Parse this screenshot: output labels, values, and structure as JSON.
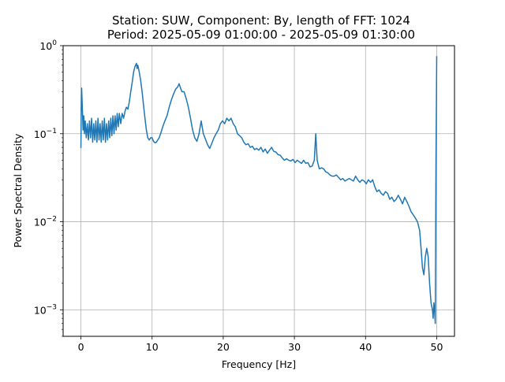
{
  "chart_data": {
    "type": "line",
    "title": "Station: SUW, Component: By, length of FFT: 1024",
    "subtitle": "Period: 2025-05-09 01:00:00 - 2025-05-09 01:30:00",
    "xlabel": "Frequency [Hz]",
    "ylabel": "Power Spectral Density",
    "xlim": [
      -2.5,
      52.5
    ],
    "ylim": [
      0.0005,
      1.0
    ],
    "yscale": "log",
    "grid": true,
    "x_ticks": [
      0,
      10,
      20,
      30,
      40,
      50
    ],
    "x_tick_labels": [
      "0",
      "10",
      "20",
      "30",
      "40",
      "50"
    ],
    "y_ticks": [
      0.001,
      0.01,
      0.1,
      1
    ],
    "y_tick_labels": [
      "10",
      "10",
      "10",
      "10"
    ],
    "y_tick_exponents": [
      "−3",
      "−2",
      "−1",
      "0"
    ],
    "series": [
      {
        "color": "#1f77b4",
        "points": [
          [
            0.0,
            0.07
          ],
          [
            0.05,
            0.2
          ],
          [
            0.1,
            0.33
          ],
          [
            0.2,
            0.2
          ],
          [
            0.3,
            0.11
          ],
          [
            0.4,
            0.16
          ],
          [
            0.5,
            0.1
          ],
          [
            0.6,
            0.14
          ],
          [
            0.75,
            0.09
          ],
          [
            0.9,
            0.13
          ],
          [
            1.05,
            0.085
          ],
          [
            1.2,
            0.14
          ],
          [
            1.35,
            0.09
          ],
          [
            1.5,
            0.15
          ],
          [
            1.65,
            0.08
          ],
          [
            1.8,
            0.13
          ],
          [
            1.95,
            0.085
          ],
          [
            2.1,
            0.14
          ],
          [
            2.25,
            0.08
          ],
          [
            2.4,
            0.15
          ],
          [
            2.55,
            0.085
          ],
          [
            2.7,
            0.13
          ],
          [
            2.85,
            0.08
          ],
          [
            3.0,
            0.14
          ],
          [
            3.15,
            0.085
          ],
          [
            3.3,
            0.15
          ],
          [
            3.45,
            0.08
          ],
          [
            3.6,
            0.13
          ],
          [
            3.75,
            0.085
          ],
          [
            3.9,
            0.14
          ],
          [
            4.05,
            0.09
          ],
          [
            4.2,
            0.15
          ],
          [
            4.35,
            0.095
          ],
          [
            4.5,
            0.16
          ],
          [
            4.65,
            0.1
          ],
          [
            4.8,
            0.16
          ],
          [
            4.95,
            0.11
          ],
          [
            5.1,
            0.17
          ],
          [
            5.25,
            0.12
          ],
          [
            5.4,
            0.17
          ],
          [
            5.6,
            0.13
          ],
          [
            5.8,
            0.17
          ],
          [
            6.0,
            0.15
          ],
          [
            6.2,
            0.18
          ],
          [
            6.4,
            0.2
          ],
          [
            6.6,
            0.19
          ],
          [
            6.8,
            0.23
          ],
          [
            7.0,
            0.3
          ],
          [
            7.2,
            0.38
          ],
          [
            7.4,
            0.5
          ],
          [
            7.6,
            0.58
          ],
          [
            7.8,
            0.63
          ],
          [
            7.9,
            0.55
          ],
          [
            8.0,
            0.6
          ],
          [
            8.2,
            0.5
          ],
          [
            8.4,
            0.4
          ],
          [
            8.6,
            0.3
          ],
          [
            8.8,
            0.21
          ],
          [
            9.0,
            0.15
          ],
          [
            9.2,
            0.11
          ],
          [
            9.4,
            0.09
          ],
          [
            9.6,
            0.085
          ],
          [
            9.8,
            0.09
          ],
          [
            10.0,
            0.09
          ],
          [
            10.2,
            0.082
          ],
          [
            10.4,
            0.079
          ],
          [
            10.6,
            0.08
          ],
          [
            10.8,
            0.085
          ],
          [
            11.0,
            0.09
          ],
          [
            11.2,
            0.1
          ],
          [
            11.5,
            0.12
          ],
          [
            11.8,
            0.14
          ],
          [
            12.1,
            0.16
          ],
          [
            12.4,
            0.2
          ],
          [
            12.7,
            0.24
          ],
          [
            13.0,
            0.28
          ],
          [
            13.3,
            0.32
          ],
          [
            13.6,
            0.34
          ],
          [
            13.8,
            0.37
          ],
          [
            14.0,
            0.33
          ],
          [
            14.2,
            0.3
          ],
          [
            14.5,
            0.3
          ],
          [
            14.8,
            0.25
          ],
          [
            15.1,
            0.2
          ],
          [
            15.4,
            0.15
          ],
          [
            15.7,
            0.11
          ],
          [
            16.0,
            0.09
          ],
          [
            16.3,
            0.082
          ],
          [
            16.6,
            0.1
          ],
          [
            16.9,
            0.14
          ],
          [
            17.2,
            0.1
          ],
          [
            17.5,
            0.087
          ],
          [
            17.8,
            0.075
          ],
          [
            18.1,
            0.068
          ],
          [
            18.4,
            0.078
          ],
          [
            18.7,
            0.09
          ],
          [
            19.0,
            0.1
          ],
          [
            19.3,
            0.11
          ],
          [
            19.6,
            0.13
          ],
          [
            19.9,
            0.14
          ],
          [
            20.2,
            0.13
          ],
          [
            20.5,
            0.15
          ],
          [
            20.8,
            0.14
          ],
          [
            21.1,
            0.15
          ],
          [
            21.4,
            0.13
          ],
          [
            21.7,
            0.12
          ],
          [
            22.0,
            0.1
          ],
          [
            22.3,
            0.095
          ],
          [
            22.6,
            0.09
          ],
          [
            22.9,
            0.08
          ],
          [
            23.2,
            0.075
          ],
          [
            23.5,
            0.077
          ],
          [
            23.8,
            0.07
          ],
          [
            24.1,
            0.072
          ],
          [
            24.4,
            0.066
          ],
          [
            24.7,
            0.068
          ],
          [
            25.0,
            0.065
          ],
          [
            25.3,
            0.07
          ],
          [
            25.6,
            0.062
          ],
          [
            25.9,
            0.067
          ],
          [
            26.2,
            0.06
          ],
          [
            26.5,
            0.065
          ],
          [
            26.8,
            0.07
          ],
          [
            27.1,
            0.063
          ],
          [
            27.4,
            0.062
          ],
          [
            27.7,
            0.058
          ],
          [
            28.0,
            0.057
          ],
          [
            28.3,
            0.053
          ],
          [
            28.6,
            0.05
          ],
          [
            28.9,
            0.052
          ],
          [
            29.2,
            0.05
          ],
          [
            29.5,
            0.049
          ],
          [
            29.8,
            0.051
          ],
          [
            30.1,
            0.047
          ],
          [
            30.4,
            0.05
          ],
          [
            30.7,
            0.048
          ],
          [
            31.0,
            0.046
          ],
          [
            31.3,
            0.05
          ],
          [
            31.6,
            0.046
          ],
          [
            31.9,
            0.047
          ],
          [
            32.2,
            0.042
          ],
          [
            32.5,
            0.043
          ],
          [
            32.8,
            0.05
          ],
          [
            33.0,
            0.1
          ],
          [
            33.2,
            0.05
          ],
          [
            33.5,
            0.04
          ],
          [
            33.8,
            0.041
          ],
          [
            34.1,
            0.04
          ],
          [
            34.4,
            0.037
          ],
          [
            34.7,
            0.036
          ],
          [
            35.0,
            0.034
          ],
          [
            35.3,
            0.033
          ],
          [
            35.6,
            0.033
          ],
          [
            35.9,
            0.034
          ],
          [
            36.2,
            0.032
          ],
          [
            36.5,
            0.03
          ],
          [
            36.8,
            0.031
          ],
          [
            37.1,
            0.029
          ],
          [
            37.4,
            0.03
          ],
          [
            37.7,
            0.031
          ],
          [
            38.0,
            0.03
          ],
          [
            38.3,
            0.029
          ],
          [
            38.6,
            0.033
          ],
          [
            38.9,
            0.03
          ],
          [
            39.2,
            0.028
          ],
          [
            39.5,
            0.03
          ],
          [
            39.8,
            0.029
          ],
          [
            40.1,
            0.027
          ],
          [
            40.4,
            0.03
          ],
          [
            40.7,
            0.028
          ],
          [
            41.0,
            0.03
          ],
          [
            41.3,
            0.025
          ],
          [
            41.6,
            0.022
          ],
          [
            41.9,
            0.023
          ],
          [
            42.2,
            0.021
          ],
          [
            42.5,
            0.02
          ],
          [
            42.8,
            0.022
          ],
          [
            43.1,
            0.021
          ],
          [
            43.4,
            0.018
          ],
          [
            43.7,
            0.019
          ],
          [
            44.0,
            0.017
          ],
          [
            44.3,
            0.018
          ],
          [
            44.6,
            0.02
          ],
          [
            44.9,
            0.018
          ],
          [
            45.2,
            0.016
          ],
          [
            45.5,
            0.019
          ],
          [
            45.8,
            0.017
          ],
          [
            46.1,
            0.015
          ],
          [
            46.4,
            0.013
          ],
          [
            46.7,
            0.012
          ],
          [
            47.0,
            0.011
          ],
          [
            47.3,
            0.01
          ],
          [
            47.6,
            0.008
          ],
          [
            47.8,
            0.005
          ],
          [
            48.0,
            0.003
          ],
          [
            48.2,
            0.0025
          ],
          [
            48.4,
            0.004
          ],
          [
            48.6,
            0.005
          ],
          [
            48.8,
            0.004
          ],
          [
            49.0,
            0.002
          ],
          [
            49.2,
            0.0012
          ],
          [
            49.4,
            0.001
          ],
          [
            49.5,
            0.0008
          ],
          [
            49.6,
            0.0012
          ],
          [
            49.7,
            0.001
          ],
          [
            49.8,
            0.0007
          ],
          [
            49.9,
            0.05
          ],
          [
            50.0,
            0.75
          ]
        ]
      }
    ]
  }
}
